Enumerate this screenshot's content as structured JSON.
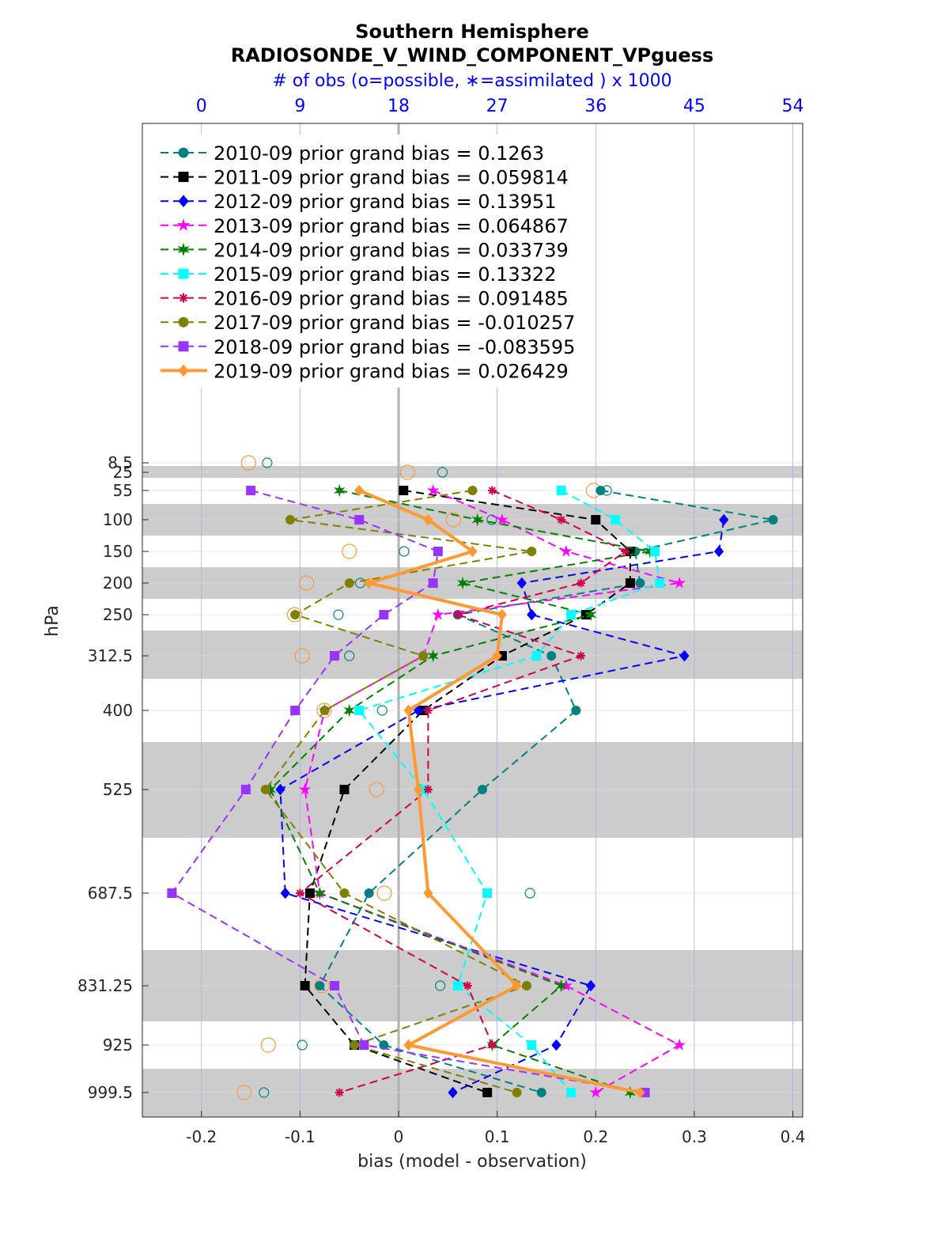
{
  "chart_data": {
    "type": "line",
    "title": "Southern Hemisphere",
    "subtitle": "RADIOSONDE_V_WIND_COMPONENT_VPguess",
    "top_axis_label": "# of obs (o=possible, ∗=assimilated ) x 1000",
    "top_ticks": [
      "0",
      "9",
      "18",
      "27",
      "36",
      "45",
      "54"
    ],
    "xlabel": "bias (model - observation)",
    "ylabel": "hPa",
    "xlim": [
      -0.26,
      0.41
    ],
    "x_ticks": [
      -0.2,
      -0.1,
      0,
      0.1,
      0.2,
      0.3,
      0.4
    ],
    "x_tick_labels": [
      "-0.2",
      "-0.1",
      "0",
      "0.1",
      "0.2",
      "0.3",
      "0.4"
    ],
    "levels": [
      8.5,
      25,
      55,
      100,
      150,
      200,
      250,
      312.5,
      400,
      525,
      687.5,
      831.25,
      925,
      999.5
    ],
    "level_labels": [
      "8.5",
      "25",
      "55",
      "100",
      "150",
      "200",
      "250",
      "312.5",
      "400",
      "525",
      "687.5",
      "831.25",
      "925",
      "999.5"
    ],
    "series": [
      {
        "name": "2010-09 prior grand bias = 0.1263",
        "color": "#008080",
        "marker": "circle",
        "dash": true,
        "plevels": [
          55,
          100,
          150,
          200,
          250,
          312.5,
          400,
          525,
          687.5,
          831.25,
          925,
          999.5
        ],
        "values": [
          0.205,
          0.38,
          0.24,
          0.245,
          0.06,
          0.155,
          0.18,
          0.085,
          -0.03,
          -0.08,
          -0.015,
          0.145
        ]
      },
      {
        "name": "2011-09 prior grand bias = 0.059814",
        "color": "#000000",
        "marker": "square",
        "dash": true,
        "plevels": [
          55,
          100,
          150,
          200,
          250,
          312.5,
          400,
          525,
          687.5,
          831.25,
          925,
          999.5
        ],
        "values": [
          0.005,
          0.2,
          0.235,
          0.235,
          0.19,
          0.105,
          0.025,
          -0.055,
          -0.09,
          -0.095,
          -0.045,
          0.09
        ]
      },
      {
        "name": "2012-09 prior grand bias = 0.13951",
        "color": "#0000ff",
        "marker": "diamond",
        "dash": true,
        "plevels": [
          100,
          150,
          200,
          250,
          312.5,
          400,
          525,
          687.5,
          831.25,
          925,
          999.5
        ],
        "values": [
          0.33,
          0.325,
          0.125,
          0.135,
          0.29,
          0.02,
          -0.12,
          -0.115,
          0.195,
          0.16,
          0.055
        ]
      },
      {
        "name": "2013-09 prior grand bias = 0.064867",
        "color": "#ff00ff",
        "marker": "star",
        "dash": true,
        "plevels": [
          55,
          100,
          150,
          200,
          250,
          312.5,
          400,
          525,
          687.5,
          831.25,
          925,
          999.5
        ],
        "values": [
          0.035,
          0.105,
          0.17,
          0.285,
          0.04,
          0.025,
          -0.075,
          -0.095,
          -0.08,
          0.17,
          0.285,
          0.2
        ]
      },
      {
        "name": "2014-09 prior grand bias = 0.033739",
        "color": "#008000",
        "marker": "hexagram",
        "dash": true,
        "plevels": [
          55,
          100,
          150,
          200,
          250,
          312.5,
          400,
          525,
          687.5,
          831.25,
          925,
          999.5
        ],
        "values": [
          -0.06,
          0.08,
          0.255,
          0.065,
          0.195,
          0.035,
          -0.05,
          -0.13,
          -0.08,
          0.165,
          0.095,
          0.235
        ]
      },
      {
        "name": "2015-09 prior grand bias = 0.13322",
        "color": "#00ffff",
        "marker": "square",
        "dash": true,
        "plevels": [
          55,
          100,
          150,
          200,
          250,
          312.5,
          400,
          525,
          687.5,
          831.25,
          925,
          999.5
        ],
        "values": [
          0.165,
          0.22,
          0.26,
          0.265,
          0.175,
          0.14,
          -0.04,
          0.025,
          0.09,
          0.06,
          0.135,
          0.175
        ]
      },
      {
        "name": "2016-09 prior grand bias = 0.091485",
        "color": "#d00050",
        "marker": "asterisk",
        "dash": true,
        "plevels": [
          55,
          100,
          150,
          200,
          250,
          312.5,
          400,
          525,
          687.5,
          831.25,
          925,
          999.5
        ],
        "values": [
          0.095,
          0.165,
          0.23,
          0.185,
          0.06,
          0.185,
          0.03,
          0.03,
          -0.1,
          0.07,
          0.095,
          -0.06
        ]
      },
      {
        "name": "2017-09 prior grand bias = -0.010257",
        "color": "#808000",
        "marker": "circle",
        "dash": true,
        "plevels": [
          55,
          100,
          150,
          200,
          250,
          312.5,
          400,
          525,
          687.5,
          831.25,
          925,
          999.5
        ],
        "values": [
          0.075,
          -0.11,
          0.135,
          -0.05,
          -0.105,
          0.025,
          -0.075,
          -0.135,
          -0.055,
          0.13,
          -0.045,
          0.12
        ]
      },
      {
        "name": "2018-09 prior grand bias = -0.083595",
        "color": "#9933ff",
        "marker": "square",
        "dash": true,
        "plevels": [
          55,
          100,
          150,
          200,
          250,
          312.5,
          400,
          525,
          687.5,
          831.25,
          925,
          999.5
        ],
        "values": [
          -0.15,
          -0.04,
          0.04,
          0.035,
          -0.015,
          -0.065,
          -0.105,
          -0.155,
          -0.23,
          -0.065,
          -0.035,
          0.25
        ]
      },
      {
        "name": "2019-09 prior grand bias = 0.026429",
        "color": "#ff9933",
        "marker": "diamond",
        "dash": false,
        "plevels": [
          55,
          100,
          150,
          200,
          250,
          312.5,
          400,
          525,
          687.5,
          831.25,
          925,
          999.5
        ],
        "values": [
          -0.04,
          0.03,
          0.075,
          -0.03,
          0.105,
          0.1,
          0.01,
          0.02,
          0.03,
          0.12,
          0.01,
          0.245
        ]
      }
    ],
    "obs_counts_possible": [
      {
        "plevel": 8.5,
        "year": "2010-09",
        "count": 6.0
      },
      {
        "plevel": 8.5,
        "year": "2019-09",
        "count": 4.3
      },
      {
        "plevel": 25,
        "year": "2010-09",
        "count": 22.0
      },
      {
        "plevel": 25,
        "year": "2019-09",
        "count": 18.8
      },
      {
        "plevel": 55,
        "year": "2010-09",
        "count": 37.0
      },
      {
        "plevel": 55,
        "year": "2019-09",
        "count": 35.8
      },
      {
        "plevel": 100,
        "year": "2010-09",
        "count": 26.5
      },
      {
        "plevel": 100,
        "year": "2019-09",
        "count": 23.0
      },
      {
        "plevel": 150,
        "year": "2010-09",
        "count": 18.5
      },
      {
        "plevel": 150,
        "year": "2019-09",
        "count": 13.5
      },
      {
        "plevel": 200,
        "year": "2010-09",
        "count": 14.5
      },
      {
        "plevel": 200,
        "year": "2019-09",
        "count": 9.6
      },
      {
        "plevel": 250,
        "year": "2010-09",
        "count": 12.5
      },
      {
        "plevel": 250,
        "year": "2019-09",
        "count": 8.5
      },
      {
        "plevel": 312.5,
        "year": "2010-09",
        "count": 13.5
      },
      {
        "plevel": 312.5,
        "year": "2019-09",
        "count": 9.2
      },
      {
        "plevel": 400,
        "year": "2010-09",
        "count": 16.5
      },
      {
        "plevel": 400,
        "year": "2019-09",
        "count": 11.2
      },
      {
        "plevel": 525,
        "year": "2010-09",
        "count": 20.0
      },
      {
        "plevel": 525,
        "year": "2019-09",
        "count": 16.0
      },
      {
        "plevel": 687.5,
        "year": "2010-09",
        "count": 30.0
      },
      {
        "plevel": 687.5,
        "year": "2019-09",
        "count": 16.7
      },
      {
        "plevel": 831.25,
        "year": "2010-09",
        "count": 21.8
      },
      {
        "plevel": 831.25,
        "year": "2019-09",
        "count": 11.0
      },
      {
        "plevel": 925,
        "year": "2010-09",
        "count": 9.2
      },
      {
        "plevel": 925,
        "year": "2019-09",
        "count": 6.1
      },
      {
        "plevel": 999.5,
        "year": "2010-09",
        "count": 5.7
      },
      {
        "plevel": 999.5,
        "year": "2019-09",
        "count": 3.9
      }
    ],
    "grid": true,
    "legend_position": "top-left"
  }
}
